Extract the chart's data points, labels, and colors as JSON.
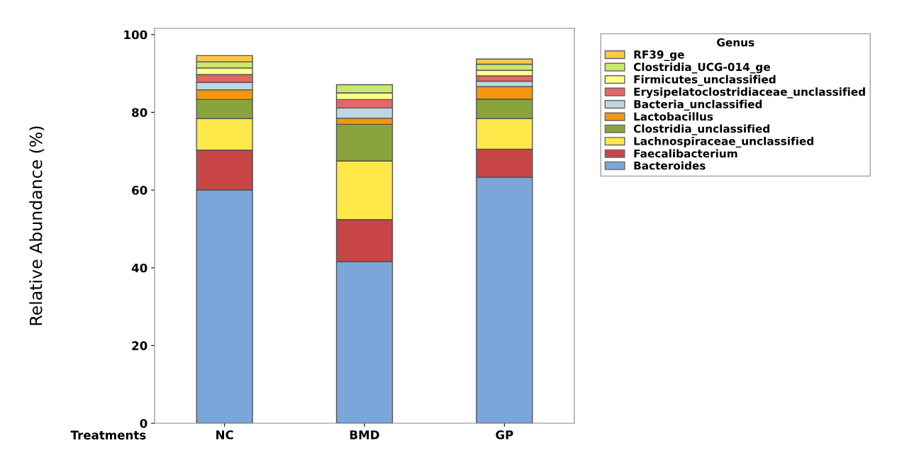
{
  "chart_data": {
    "type": "bar",
    "stacked": true,
    "ylabel": "Relative Abundance (%)",
    "xlabel": "Treatments",
    "legend_title": "Genus",
    "legend": "right",
    "categories": [
      "NC",
      "BMD",
      "GP"
    ],
    "ylim": [
      0,
      101.6
    ],
    "yticks": [
      0,
      20,
      40,
      60,
      80,
      100
    ],
    "grid": false,
    "series": [
      {
        "name": "Bacteroides",
        "color": "#7ba6d9",
        "values": [
          60.0,
          41.6,
          63.3
        ]
      },
      {
        "name": "Faecalibacterium",
        "color": "#c84545",
        "values": [
          10.3,
          10.8,
          7.2
        ]
      },
      {
        "name": "Lachnospiraceae_unclassified",
        "color": "#ffe84a",
        "values": [
          8.1,
          15.1,
          7.9
        ]
      },
      {
        "name": "Clostridia_unclassified",
        "color": "#8aa33c",
        "values": [
          4.9,
          9.4,
          5.0
        ]
      },
      {
        "name": "Lactobacillus",
        "color": "#f5960f",
        "values": [
          2.5,
          1.6,
          3.2
        ]
      },
      {
        "name": "Bacteria_unclassified",
        "color": "#bcd8e4",
        "values": [
          1.9,
          2.6,
          1.4
        ]
      },
      {
        "name": "Erysipelatoclostridiaceae_unclassified",
        "color": "#e56666",
        "values": [
          2.0,
          2.2,
          1.4
        ]
      },
      {
        "name": "Firmicutes_unclassified",
        "color": "#ffff8a",
        "values": [
          1.7,
          1.7,
          1.4
        ]
      },
      {
        "name": "Clostridia_UCG-014_ge",
        "color": "#c9e86e",
        "values": [
          1.6,
          2.1,
          1.6
        ]
      },
      {
        "name": "RF39_ge",
        "color": "#fdc843",
        "values": [
          1.6,
          null,
          1.3
        ]
      }
    ]
  }
}
